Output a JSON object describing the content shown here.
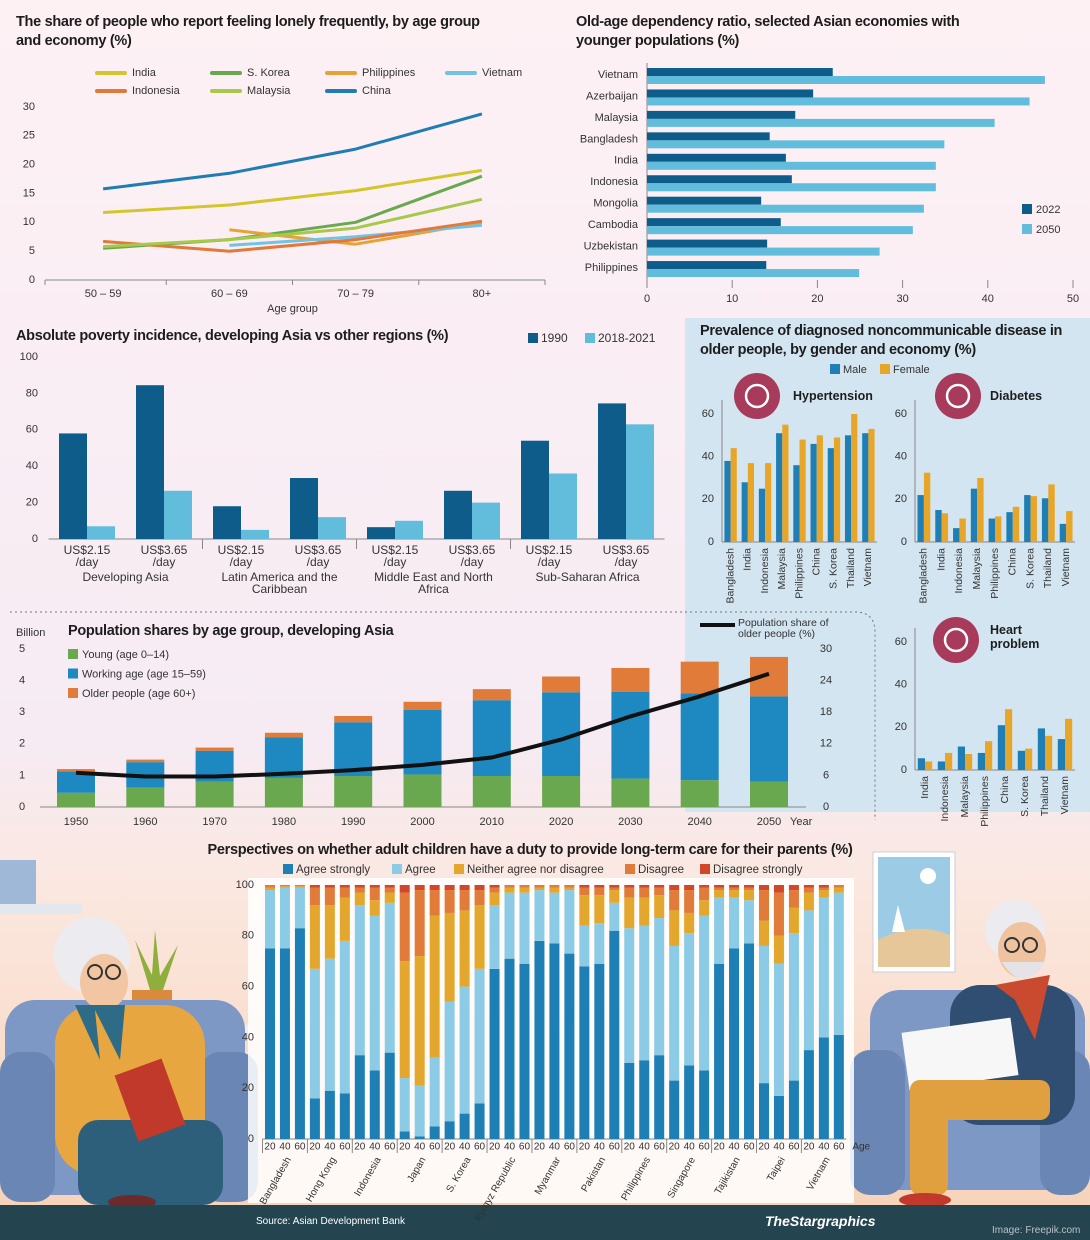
{
  "chart_data": [
    {
      "type": "line",
      "title": "The share of people who report feeling lonely frequently, by age group and economy (%)",
      "categories": [
        "50 – 59",
        "60 – 69",
        "70 – 79",
        "80+"
      ],
      "x_label": "Age group",
      "ylim": [
        0,
        30
      ],
      "yticks": [
        0,
        5,
        10,
        15,
        20,
        25,
        30
      ],
      "series": [
        {
          "name": "India",
          "color": "#d3c62c",
          "values": [
            11.7,
            13,
            15.5,
            19
          ]
        },
        {
          "name": "S. Korea",
          "color": "#6aa84f",
          "values": [
            5.5,
            7,
            10,
            18
          ]
        },
        {
          "name": "Philippines",
          "color": "#e7a237",
          "values": [
            null,
            8.7,
            6.2,
            10
          ]
        },
        {
          "name": "Vietnam",
          "color": "#72c2e3",
          "values": [
            null,
            6,
            7.5,
            9.5
          ]
        },
        {
          "name": "Indonesia",
          "color": "#e0793a",
          "values": [
            6.7,
            5,
            7,
            10.2
          ]
        },
        {
          "name": "Malaysia",
          "color": "#a8c84a",
          "values": [
            5.8,
            7,
            9,
            14
          ]
        },
        {
          "name": "China",
          "color": "#1f7db3",
          "values": [
            15.8,
            18.5,
            22.7,
            28.8
          ]
        }
      ]
    },
    {
      "type": "hbar",
      "title": "Old-age dependency ratio, selected Asian economies with younger populations (%)",
      "categories": [
        "Vietnam",
        "Azerbaijan",
        "Malaysia",
        "Bangladesh",
        "India",
        "Indonesia",
        "Mongolia",
        "Cambodia",
        "Uzbekistan",
        "Philippines"
      ],
      "xlim": [
        0,
        50
      ],
      "xticks": [
        0,
        10,
        20,
        30,
        40,
        50
      ],
      "series": [
        {
          "name": "2022",
          "color": "#0e5c8a",
          "values": [
            21.8,
            19.5,
            17.4,
            14.4,
            16.3,
            17,
            13.4,
            15.7,
            14.1,
            14
          ]
        },
        {
          "name": "2050",
          "color": "#62bcdc",
          "values": [
            46.7,
            44.9,
            40.8,
            34.9,
            33.9,
            33.9,
            32.5,
            31.2,
            27.3,
            24.9
          ]
        }
      ]
    },
    {
      "type": "bar",
      "title": "Absolute poverty incidence, developing Asia vs other regions (%)",
      "categories": [
        "US$2.15 /day",
        "US$3.65 /day",
        "US$2.15 /day",
        "US$3.65 /day",
        "US$2.15 /day",
        "US$3.65 /day",
        "US$2.15 /day",
        "US$3.65 /day"
      ],
      "groups": [
        "Developing Asia",
        "Latin America and the Caribbean",
        "Middle East and North Africa",
        "Sub-Saharan Africa"
      ],
      "ylim": [
        0,
        100
      ],
      "yticks": [
        0,
        20,
        40,
        60,
        80,
        100
      ],
      "series": [
        {
          "name": "1990",
          "color": "#0e5c8a",
          "values": [
            58,
            84.5,
            18,
            33.5,
            6.5,
            26.5,
            54,
            74.5
          ]
        },
        {
          "name": "2018-2021",
          "color": "#62bcdc",
          "values": [
            7,
            26.5,
            5,
            12,
            10,
            20,
            36,
            63
          ]
        }
      ]
    },
    {
      "type": "bar-panels",
      "title": "Prevalence of diagnosed noncommunicable disease in older people, by gender and economy (%)",
      "ylim": [
        0,
        60
      ],
      "yticks": [
        0,
        20,
        40,
        60
      ],
      "series": [
        {
          "name": "Male",
          "color": "#1f7fb5"
        },
        {
          "name": "Female",
          "color": "#e8a628"
        }
      ],
      "panels": [
        {
          "title": "Hypertension",
          "categories": [
            "Bangladesh",
            "India",
            "Indonesia",
            "Malaysia",
            "Philippines",
            "China",
            "S. Korea",
            "Thailand",
            "Vietnam"
          ],
          "series": [
            {
              "values": [
                38,
                28,
                25,
                51,
                36,
                46,
                44,
                50,
                51
              ]
            },
            {
              "values": [
                44,
                37,
                37,
                55,
                48,
                50,
                49,
                60,
                53
              ]
            }
          ]
        },
        {
          "title": "Diabetes",
          "categories": [
            "Bangladesh",
            "India",
            "Indonesia",
            "Malaysia",
            "Philippines",
            "China",
            "S. Korea",
            "Thailand",
            "Vietnam"
          ],
          "series": [
            {
              "values": [
                22,
                15,
                6.5,
                25,
                11,
                14,
                22,
                20.5,
                8.5
              ]
            },
            {
              "values": [
                32.5,
                13.5,
                11,
                30,
                12,
                16.5,
                21.5,
                27,
                14.5
              ]
            }
          ]
        },
        {
          "title": "Heart problem",
          "categories": [
            "India",
            "Indonesia",
            "Malaysia",
            "Philippines",
            "China",
            "S. Korea",
            "Thailand",
            "Vietnam"
          ],
          "series": [
            {
              "values": [
                5.5,
                4,
                11,
                8,
                21,
                9,
                19.5,
                14.5
              ]
            },
            {
              "values": [
                4,
                8,
                7.5,
                13.5,
                28.5,
                10,
                16,
                24
              ]
            }
          ]
        }
      ]
    },
    {
      "type": "stacked-bar-line",
      "title": "Population shares by age group, developing Asia",
      "y_label": "Billion",
      "x_label": "Year",
      "categories": [
        "1950",
        "1960",
        "1970",
        "1980",
        "1990",
        "2000",
        "2010",
        "2020",
        "2030",
        "2040",
        "2050"
      ],
      "ylim": [
        0,
        5
      ],
      "yticks": [
        0,
        1,
        2,
        3,
        4,
        5
      ],
      "y2lim": [
        0,
        30
      ],
      "y2ticks": [
        0,
        6,
        12,
        18,
        24,
        30
      ],
      "series": [
        {
          "name": "Young (age 0–14)",
          "color": "#6aa84f",
          "values": [
            0.45,
            0.62,
            0.8,
            0.92,
            0.98,
            1.03,
            0.98,
            0.98,
            0.9,
            0.85,
            0.8
          ]
        },
        {
          "name": "Working age (age 15–59)",
          "color": "#1e88c0",
          "values": [
            0.68,
            0.8,
            0.98,
            1.28,
            1.7,
            2.05,
            2.4,
            2.65,
            2.75,
            2.75,
            2.7
          ]
        },
        {
          "name": "Older people (age 60+)",
          "color": "#e07b39",
          "values": [
            0.07,
            0.08,
            0.1,
            0.15,
            0.2,
            0.25,
            0.35,
            0.5,
            0.75,
            1.0,
            1.25
          ]
        },
        {
          "name": "Population share of older people (%)",
          "color": "#111111",
          "axis": "y2",
          "values": [
            6.5,
            5.8,
            5.8,
            6.3,
            7,
            8,
            9.4,
            12.8,
            17.2,
            21,
            25.3
          ]
        }
      ]
    },
    {
      "type": "stacked-bar-100",
      "title": "Perspectives on whether adult children have a duty to provide long-term care for their parents (%)",
      "x_label": "Age",
      "categories": [
        "20",
        "40",
        "60",
        "20",
        "40",
        "60",
        "20",
        "40",
        "60",
        "20",
        "40",
        "60",
        "20",
        "40",
        "60",
        "20",
        "40",
        "60",
        "20",
        "40",
        "60",
        "20",
        "40",
        "60",
        "20",
        "40",
        "60",
        "20",
        "40",
        "60",
        "20",
        "40",
        "60",
        "20",
        "40",
        "60",
        "20",
        "40",
        "60"
      ],
      "groups": [
        "Bangladesh",
        "Hong Kong",
        "Indonesia",
        "Japan",
        "S. Korea",
        "Kyrgyz Republic",
        "Myanmar",
        "Pakistan",
        "Philippines",
        "Singapore",
        "Tajikistan",
        "Taipei",
        "Vietnam"
      ],
      "ylim": [
        0,
        100
      ],
      "yticks": [
        0,
        20,
        40,
        60,
        80,
        100
      ],
      "series": [
        {
          "name": "Agree strongly",
          "color": "#1e7fb5",
          "values": [
            75,
            75,
            83,
            16,
            19,
            18,
            33,
            27,
            34,
            3,
            1,
            5,
            7,
            10,
            14,
            67,
            71,
            69,
            78,
            77,
            73,
            68,
            69,
            82,
            30,
            31,
            33,
            23,
            29,
            27,
            69,
            75,
            77,
            22,
            17,
            23,
            35,
            40,
            41
          ]
        },
        {
          "name": "Agree",
          "color": "#8ccbe6",
          "values": [
            23,
            24,
            16,
            51,
            52,
            60,
            59,
            61,
            59,
            21,
            20,
            27,
            47,
            50,
            53,
            25,
            26,
            28,
            20,
            20,
            25,
            16,
            16,
            11,
            53,
            53,
            54,
            53,
            52,
            61,
            26,
            20,
            17,
            54,
            52,
            58,
            55,
            55,
            56
          ]
        },
        {
          "name": "Neither agree nor disagree",
          "color": "#e2a72c",
          "values": [
            1,
            0.5,
            0.5,
            25,
            21,
            17,
            5,
            6,
            4,
            46,
            51,
            56,
            35,
            30,
            25,
            5,
            2,
            2,
            1,
            2,
            1,
            12,
            11,
            5,
            12,
            11,
            9,
            14,
            8,
            6,
            3,
            3,
            4,
            10,
            11,
            10,
            7,
            3,
            2
          ]
        },
        {
          "name": "Disagree",
          "color": "#e07b39",
          "values": [
            1,
            0.5,
            0.5,
            7,
            7,
            4,
            2,
            5,
            2,
            27,
            26,
            10,
            9,
            8,
            6,
            2,
            1,
            1,
            1,
            1,
            1,
            3,
            3,
            1,
            4,
            4,
            3,
            8,
            9,
            5,
            1,
            1,
            1,
            12,
            17,
            7,
            2,
            1,
            1
          ]
        },
        {
          "name": "Disagree strongly",
          "color": "#d2462a",
          "values": [
            0,
            0,
            0,
            1,
            1,
            1,
            1,
            1,
            1,
            3,
            2,
            2,
            2,
            2,
            2,
            1,
            0,
            0,
            0,
            0,
            0,
            1,
            1,
            1,
            1,
            1,
            1,
            2,
            2,
            1,
            1,
            1,
            1,
            2,
            3,
            2,
            1,
            1,
            0
          ]
        }
      ]
    }
  ],
  "footer": {
    "source": "Source: Asian Development Bank",
    "credit": "TheStargraphics",
    "image_credit": "Image: Freepik.com"
  }
}
